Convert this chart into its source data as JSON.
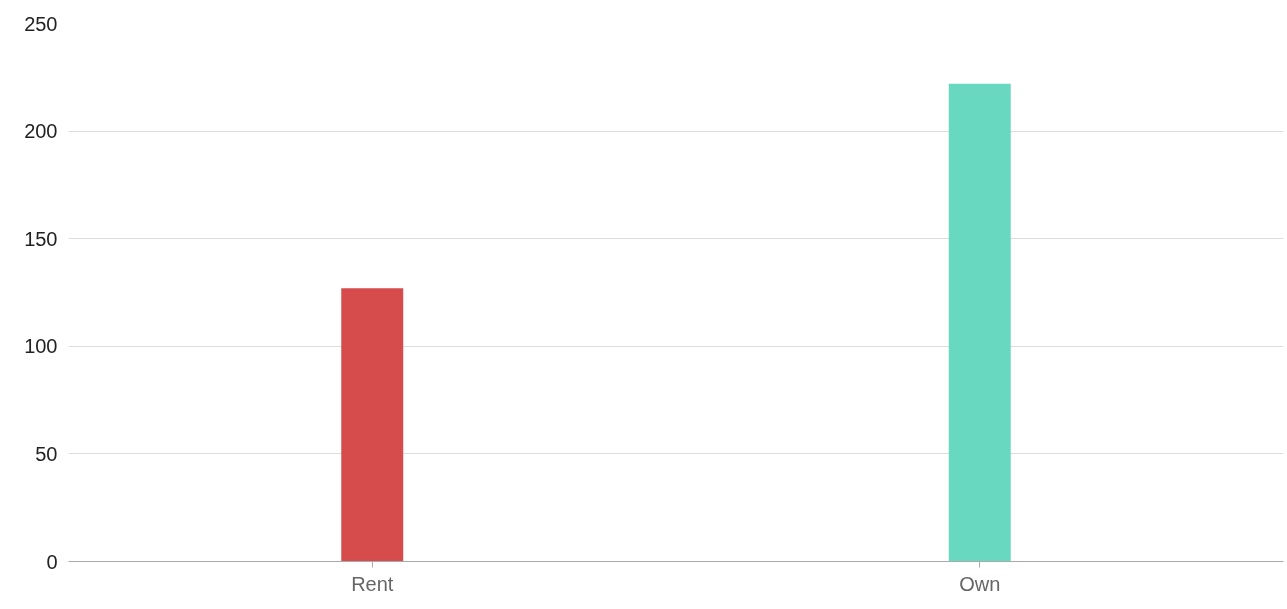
{
  "chart_data": {
    "type": "bar",
    "categories": [
      "Rent",
      "Own"
    ],
    "values": [
      127,
      222
    ],
    "colors": [
      "#d64b4c",
      "#69d8c0"
    ],
    "ylim": [
      0,
      250
    ],
    "yticks": [
      0,
      50,
      100,
      150,
      200,
      250
    ],
    "grid": "y"
  }
}
